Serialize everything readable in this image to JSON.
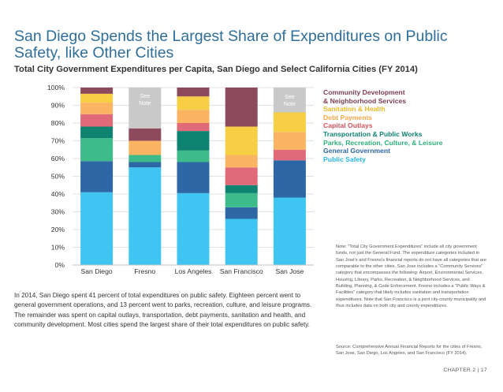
{
  "title": "San Diego Spends the Largest Share of Expenditures on Public Safety, like Other Cities",
  "chart_data": {
    "type": "bar",
    "stacked": true,
    "title": "Total City Government Expenditures per Capita, San Diego and Select California Cities (FY 2014)",
    "categories": [
      "San Diego",
      "Fresno",
      "Los Angeles",
      "San Francisco",
      "San Jose"
    ],
    "ylim": [
      0,
      100
    ],
    "yticks": [
      "0%",
      "10%",
      "20%",
      "30%",
      "40%",
      "50%",
      "60%",
      "70%",
      "80%",
      "90%",
      "100%"
    ],
    "series": [
      {
        "name": "Public Safety",
        "color": "#40c4f2",
        "values": [
          41,
          55,
          40.5,
          26,
          38
        ]
      },
      {
        "name": "General Government",
        "color": "#2d67a5",
        "values": [
          17.5,
          3,
          17.5,
          6.5,
          21
        ]
      },
      {
        "name": "Parks, Recreation, Culture, & Leisure",
        "color": "#3dbb8a",
        "values": [
          13,
          4,
          6.5,
          8,
          0
        ]
      },
      {
        "name": "Transportation & Public Works",
        "color": "#0f8371",
        "values": [
          6.5,
          0,
          11,
          4.5,
          0
        ]
      },
      {
        "name": "Capital Outlays",
        "color": "#e06a78",
        "values": [
          7,
          0,
          4.5,
          10,
          6
        ]
      },
      {
        "name": "Debt Payments",
        "color": "#fbb462",
        "values": [
          6.5,
          8,
          7.5,
          7,
          10
        ]
      },
      {
        "name": "Sanitation & Health",
        "color": "#f6cf45",
        "values": [
          5,
          0,
          7.5,
          16,
          11
        ]
      },
      {
        "name": "Community Development & Neighborhood Services",
        "color": "#8c4a5c",
        "values": [
          3.5,
          7,
          5,
          22,
          0
        ]
      },
      {
        "name": "See Note",
        "color": "#c9c9c9",
        "values": [
          0,
          23,
          0,
          0,
          14
        ]
      }
    ],
    "see_note_label": "See Note"
  },
  "legend": {
    "community_line1": "Community Development",
    "community_line2": "& Neighborhood Services",
    "sanitation": "Sanitation & Health",
    "debt": "Debt Payments",
    "capital": "Capital Outlays",
    "transportation": "Transportation & Public Works",
    "parks": "Parks, Recreation, Culture, & Leisure",
    "general": "General Government",
    "safety": "Public Safety"
  },
  "body_text": "In 2014, San Diego spent 41 percent of total expenditures on public safety. Eighteen percent went to general government operations, and 13 percent went to parks, recreation, culture, and leisure programs. The remainder was spent on capital outlays, transportation, debt payments, sanitation and health, and community development. Most cities spend the largest share of their total expenditures on public safety.",
  "note_text": "Note: \"Total City Government Expenditures\" include all city government funds, not just the General Fund. The expenditure categories included in San José's and Fresno's financial reports do not have all categories that are comparable to the other cities. San Jose includes a \"Community Services\" category that encompasses the following: Airport, Environmental Services, Housing, Library, Parks, Recreation, & Neighborhood Services, and Building, Planning, & Code Enforcement. Fresno includes a \"Public Ways & Facilities\" category that likely includes sanitation and transportation expenditures. Note that San Francisco is a joint city-county municipality and thus includes data on both city and county expenditures.",
  "source_text": "Source: Comprehensive Annual Financial Reports for the cities of Fresno, San Jose, San Diego, Los Angeles, and San Francisco (FY 2014).",
  "footer": "CHAPTER 2 | 17"
}
